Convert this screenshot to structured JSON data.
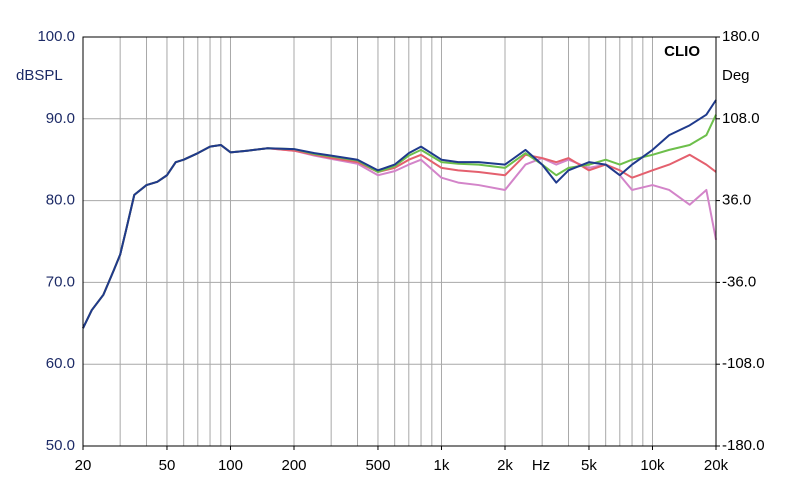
{
  "chart_data": {
    "type": "line",
    "annotation": "CLIO",
    "ylabel": "dBSPL",
    "y2label": "Deg",
    "xlabel": "Hz",
    "xscale": "log",
    "xlim": [
      20,
      20000
    ],
    "ylim": [
      50,
      100
    ],
    "y2lim": [
      -180,
      180
    ],
    "xticks": [
      20,
      50,
      100,
      200,
      500,
      {
        "value": 1000,
        "label": "1k"
      },
      {
        "value": 2000,
        "label": "2k"
      },
      {
        "value": 5000,
        "label": "5k"
      },
      {
        "value": 10000,
        "label": "10k"
      },
      {
        "value": 20000,
        "label": "20k"
      }
    ],
    "xgrid": [
      20,
      30,
      40,
      50,
      60,
      70,
      80,
      90,
      100,
      200,
      300,
      400,
      500,
      600,
      700,
      800,
      900,
      1000,
      2000,
      3000,
      4000,
      5000,
      6000,
      7000,
      8000,
      9000,
      10000,
      20000
    ],
    "yticks": [
      {
        "value": 50,
        "label": "50.0"
      },
      {
        "value": 60,
        "label": "60.0"
      },
      {
        "value": 70,
        "label": "70.0"
      },
      {
        "value": 80,
        "label": "80.0"
      },
      {
        "value": 90,
        "label": "90.0"
      },
      {
        "value": 100,
        "label": "100.0"
      }
    ],
    "y2ticks": [
      {
        "value": -180,
        "label": "-180.0"
      },
      {
        "value": -108,
        "label": "-108.0"
      },
      {
        "value": -36,
        "label": "-36.0"
      },
      {
        "value": 36,
        "label": "36.0"
      },
      {
        "value": 108,
        "label": "108.0"
      },
      {
        "value": 180,
        "label": "180.0"
      }
    ],
    "grid": true,
    "x": [
      20,
      22,
      25,
      28,
      30,
      32,
      35,
      40,
      45,
      50,
      55,
      60,
      70,
      80,
      90,
      100,
      120,
      150,
      200,
      250,
      300,
      400,
      500,
      600,
      700,
      800,
      1000,
      1200,
      1500,
      2000,
      2500,
      3000,
      3500,
      4000,
      5000,
      6000,
      7000,
      8000,
      10000,
      12000,
      15000,
      18000,
      20000
    ],
    "series": [
      {
        "color": "#d384c9",
        "values": [
          64.4,
          66.6,
          68.5,
          71.5,
          73.4,
          76.4,
          80.7,
          81.9,
          82.3,
          83.1,
          84.7,
          85,
          85.8,
          86.6,
          86.8,
          85.9,
          86.1,
          86.4,
          86.1,
          85.5,
          85.1,
          84.5,
          83.1,
          83.6,
          84.4,
          85,
          82.8,
          82.2,
          81.9,
          81.3,
          84.4,
          85.2,
          84.4,
          85,
          84,
          84.4,
          83.1,
          81.3,
          81.9,
          81.3,
          79.5,
          81.3,
          75.2
        ]
      },
      {
        "color": "#e4606e",
        "values": [
          64.4,
          66.6,
          68.5,
          71.5,
          73.4,
          76.4,
          80.7,
          81.9,
          82.3,
          83.1,
          84.7,
          85,
          85.8,
          86.6,
          86.8,
          85.9,
          86.1,
          86.4,
          86.1,
          85.6,
          85.2,
          84.7,
          83.5,
          84,
          85,
          85.6,
          84,
          83.7,
          83.5,
          83.1,
          85.6,
          85.2,
          84.7,
          85.2,
          83.7,
          84.4,
          83.7,
          82.8,
          83.7,
          84.4,
          85.6,
          84.4,
          83.5
        ]
      },
      {
        "color": "#6dbf4b",
        "values": [
          64.4,
          66.6,
          68.5,
          71.5,
          73.4,
          76.4,
          80.7,
          81.9,
          82.3,
          83.1,
          84.7,
          85,
          85.8,
          86.6,
          86.8,
          85.9,
          86.1,
          86.4,
          86.3,
          85.7,
          85.4,
          84.9,
          83.5,
          84.2,
          85.5,
          86.2,
          84.7,
          84.5,
          84.4,
          84,
          85.8,
          84.4,
          83.1,
          84,
          84.4,
          85,
          84.4,
          85,
          85.6,
          86.2,
          86.8,
          88,
          90.5
        ]
      },
      {
        "color": "#1f3a8c",
        "values": [
          64.4,
          66.6,
          68.5,
          71.5,
          73.4,
          76.4,
          80.7,
          81.9,
          82.3,
          83.1,
          84.7,
          85,
          85.8,
          86.6,
          86.8,
          85.9,
          86.1,
          86.4,
          86.3,
          85.8,
          85.5,
          85,
          83.7,
          84.4,
          85.8,
          86.6,
          85,
          84.7,
          84.7,
          84.4,
          86.2,
          84.4,
          82.2,
          83.7,
          84.7,
          84.4,
          83.1,
          84.4,
          86.2,
          88,
          89.2,
          90.5,
          92.3
        ]
      }
    ]
  }
}
